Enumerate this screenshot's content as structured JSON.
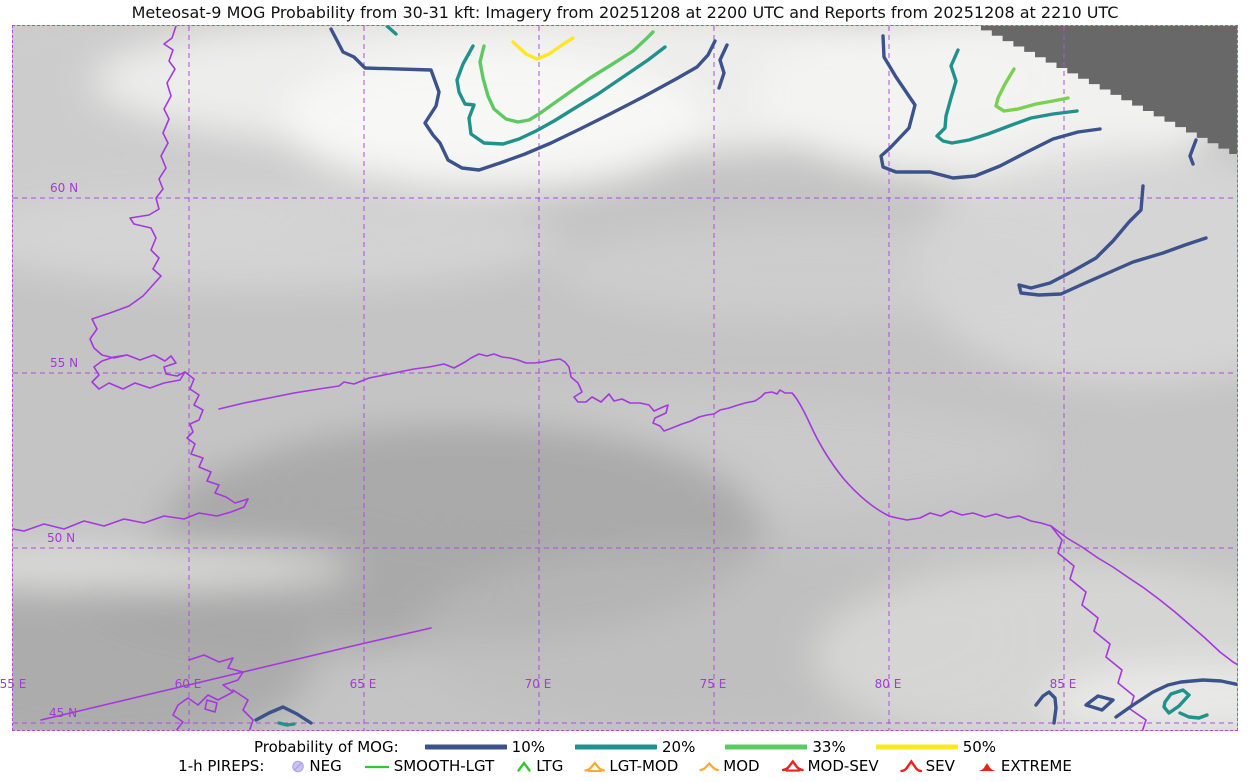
{
  "title": "Meteosat-9 MOG Probability from 30-31 kft: Imagery from 20251208 at 2200 UTC and Reports from 20251208 at 2210 UTC",
  "map": {
    "lat_labels": [
      "60 N",
      "55 N",
      "50 N",
      "45 N"
    ],
    "lon_labels": [
      "55 E",
      "60 E",
      "65 E",
      "70 E",
      "75 E",
      "80 E",
      "85 E"
    ]
  },
  "colors": {
    "contour_10": "#3b528b",
    "contour_20": "#21918c",
    "contour_33": "#5ec962",
    "contour_33_inner": "#7ad151",
    "contour_50": "#fde725",
    "grid": "#ad4fd9",
    "border": "#a538dd",
    "label": "#a33bd6",
    "nodata": "#686868"
  },
  "legend": {
    "mog": {
      "label": "Probability of MOG:",
      "items": [
        {
          "label": "10%",
          "color": "#3b528b"
        },
        {
          "label": "20%",
          "color": "#21918c"
        },
        {
          "label": "33%",
          "color": "#5ec962"
        },
        {
          "label": "50%",
          "color": "#fde725"
        }
      ]
    },
    "pireps": {
      "label": "1-h PIREPS:",
      "items": [
        {
          "label": "NEG",
          "symbol": "null-circle",
          "color": "#ccc4f0"
        },
        {
          "label": "SMOOTH-LGT",
          "symbol": "line",
          "color": "#2fc92f"
        },
        {
          "label": "LTG",
          "symbol": "caret",
          "color": "#2fc92f"
        },
        {
          "label": "LGT-MOD",
          "symbol": "caret-base",
          "color": "#ffaa2e"
        },
        {
          "label": "MOD",
          "symbol": "caret",
          "color": "#ffaa2e"
        },
        {
          "label": "MOD-SEV",
          "symbol": "caret-base",
          "color": "#e8231c"
        },
        {
          "label": "SEV",
          "symbol": "caret",
          "color": "#e8231c"
        },
        {
          "label": "EXTREME",
          "symbol": "triangle",
          "color": "#e8231c"
        }
      ]
    }
  }
}
